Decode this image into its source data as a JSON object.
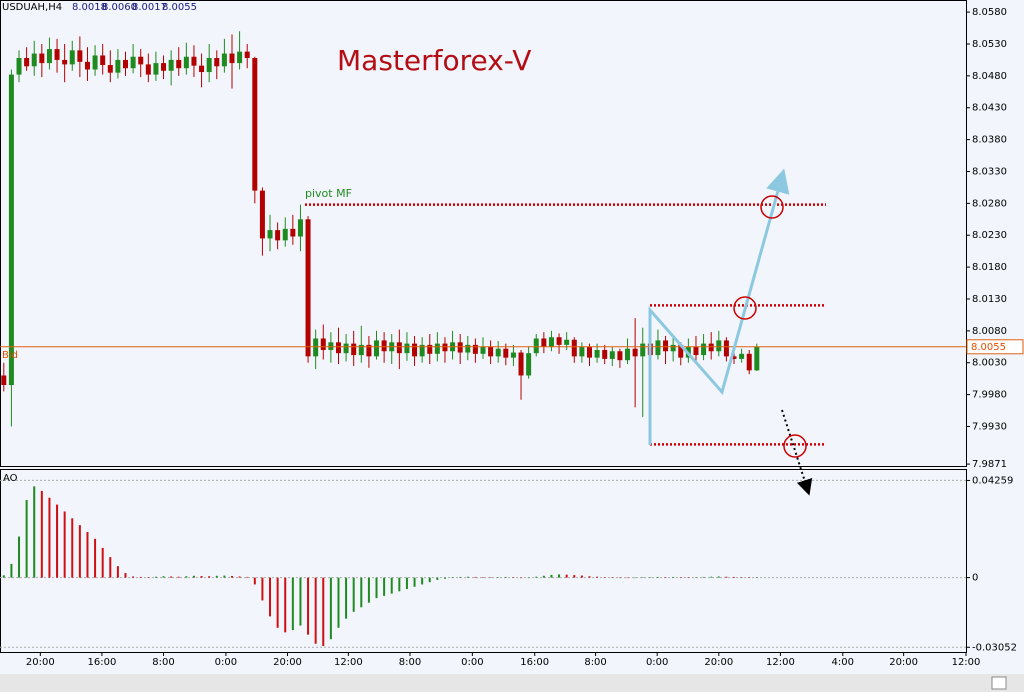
{
  "chart_data": [
    {
      "type": "candlestick",
      "title": "USDUAH,H4",
      "ohlc_header": [
        {
          "value": 8.0018,
          "label": "8.0018"
        },
        {
          "value": 8.006,
          "label": "8.0060"
        },
        {
          "value": 8.0017,
          "label": "8.0017"
        },
        {
          "value": 8.0055,
          "label": "8.0055"
        }
      ],
      "annotation": "Masterforex-V",
      "pivot_label": "pivot MF",
      "bid_label": "Bid",
      "bid_price": 8.0055,
      "levels": [
        8.0278,
        8.012,
        7.9902
      ],
      "up_color": "#1f8a1f",
      "down_color": "#b30000",
      "open": [
        8.001,
        7.9995,
        8.0482,
        8.0508,
        8.0495,
        8.0515,
        8.05,
        8.0522,
        8.0505,
        8.0498,
        8.052,
        8.0502,
        8.049,
        8.0512,
        8.0497,
        8.0485,
        8.0505,
        8.0492,
        8.051,
        8.0498,
        8.0482,
        8.05,
        8.0488,
        8.0505,
        8.0492,
        8.051,
        8.0496,
        8.0486,
        8.0508,
        8.0495,
        8.0515,
        8.05,
        8.0518,
        8.0508,
        8.03,
        8.0225,
        8.0238,
        8.0222,
        8.024,
        8.0228,
        8.0255,
        8.004,
        8.0068,
        8.005,
        8.0062,
        8.0045,
        8.006,
        8.0042,
        8.0058,
        8.004,
        8.0065,
        8.0048,
        8.0062,
        8.0045,
        8.006,
        8.004,
        8.0058,
        8.0044,
        8.006,
        8.0048,
        8.0062,
        8.0046,
        8.0058,
        8.0044,
        8.0055,
        8.004,
        8.0052,
        8.0038,
        8.0046,
        8.001,
        8.0045,
        8.0068,
        8.0055,
        8.007,
        8.0058,
        8.0066,
        8.004,
        8.0055,
        8.0038,
        8.005,
        8.0036,
        8.0048,
        8.0034,
        8.0052,
        8.004,
        8.006,
        8.0042,
        8.0065,
        8.0048,
        8.0058,
        8.0038,
        8.0055,
        8.0042,
        8.006,
        8.0048,
        8.0065,
        8.004,
        8.0036,
        8.0044,
        8.0018
      ],
      "high": [
        8.003,
        8.049,
        8.052,
        8.0525,
        8.0535,
        8.053,
        8.054,
        8.0538,
        8.053,
        8.0535,
        8.0542,
        8.0525,
        8.0528,
        8.053,
        8.052,
        8.0522,
        8.0518,
        8.053,
        8.0522,
        8.0515,
        8.0518,
        8.0512,
        8.052,
        8.0525,
        8.0532,
        8.0528,
        8.0515,
        8.053,
        8.052,
        8.0538,
        8.0545,
        8.055,
        8.053,
        8.051,
        8.0305,
        8.0262,
        8.025,
        8.0258,
        8.0262,
        8.0278,
        8.026,
        8.0082,
        8.009,
        8.0078,
        8.0085,
        8.0075,
        8.008,
        8.0088,
        8.0072,
        8.008,
        8.0078,
        8.0075,
        8.0082,
        8.0078,
        8.0072,
        8.007,
        8.0075,
        8.0078,
        8.007,
        8.008,
        8.0075,
        8.0072,
        8.0068,
        8.007,
        8.0065,
        8.0064,
        8.006,
        8.0058,
        8.005,
        8.0055,
        8.0075,
        8.0078,
        8.008,
        8.0076,
        8.0078,
        8.007,
        8.0062,
        8.006,
        8.006,
        8.0058,
        8.0055,
        8.0052,
        8.0068,
        8.01,
        8.0085,
        8.0078,
        8.0082,
        8.0072,
        8.007,
        8.0062,
        8.0068,
        8.0072,
        8.0075,
        8.0078,
        8.008,
        8.007,
        8.005,
        8.0052,
        8.005,
        8.006
      ],
      "low": [
        7.9985,
        7.993,
        8.047,
        8.0488,
        8.048,
        8.0478,
        8.049,
        8.0485,
        8.047,
        8.0488,
        8.0478,
        8.0472,
        8.048,
        8.0482,
        8.047,
        8.0476,
        8.048,
        8.0484,
        8.0478,
        8.047,
        8.0472,
        8.0475,
        8.0465,
        8.048,
        8.0482,
        8.0478,
        8.0462,
        8.047,
        8.0475,
        8.0485,
        8.046,
        8.049,
        8.0492,
        8.028,
        8.0198,
        8.0205,
        8.0208,
        8.0212,
        8.0215,
        8.0205,
        8.003,
        8.002,
        8.0035,
        8.003,
        8.0028,
        8.0032,
        8.0025,
        8.003,
        8.0022,
        8.0035,
        8.003,
        8.0028,
        8.002,
        8.0033,
        8.0025,
        8.003,
        8.0028,
        8.0032,
        8.003,
        8.0035,
        8.0028,
        8.0034,
        8.003,
        8.0036,
        8.0028,
        8.003,
        8.0026,
        8.0025,
        7.9972,
        8.0005,
        8.004,
        8.0045,
        8.0048,
        8.0044,
        8.005,
        8.003,
        8.003,
        8.0025,
        8.003,
        8.0028,
        8.0025,
        8.0022,
        8.0028,
        7.996,
        7.9945,
        8.003,
        8.0035,
        8.0028,
        8.0032,
        8.0026,
        8.003,
        8.003,
        8.0034,
        8.0035,
        8.004,
        8.0032,
        8.0028,
        8.003,
        8.0012,
        8.0017
      ],
      "close": [
        7.9995,
        8.0482,
        8.0508,
        8.0495,
        8.0515,
        8.05,
        8.0522,
        8.0505,
        8.0498,
        8.052,
        8.0502,
        8.049,
        8.0512,
        8.0497,
        8.0485,
        8.0505,
        8.0492,
        8.051,
        8.0498,
        8.0482,
        8.05,
        8.0488,
        8.0505,
        8.0492,
        8.051,
        8.0496,
        8.0486,
        8.0508,
        8.0495,
        8.0515,
        8.05,
        8.0518,
        8.0508,
        8.03,
        8.0225,
        8.0238,
        8.0222,
        8.024,
        8.0228,
        8.0255,
        8.004,
        8.0068,
        8.005,
        8.0062,
        8.0045,
        8.006,
        8.0042,
        8.0058,
        8.004,
        8.0065,
        8.0048,
        8.0062,
        8.0045,
        8.006,
        8.004,
        8.0058,
        8.0044,
        8.006,
        8.0048,
        8.0062,
        8.0046,
        8.0058,
        8.0044,
        8.0055,
        8.004,
        8.0052,
        8.0038,
        8.0046,
        8.001,
        8.0045,
        8.0068,
        8.0055,
        8.007,
        8.0058,
        8.0066,
        8.004,
        8.0055,
        8.0038,
        8.005,
        8.0036,
        8.0048,
        8.0034,
        8.0052,
        8.004,
        8.006,
        8.0042,
        8.0065,
        8.0048,
        8.0058,
        8.0038,
        8.0055,
        8.0042,
        8.006,
        8.0048,
        8.0065,
        8.004,
        8.0036,
        8.0044,
        8.0018,
        8.0055
      ],
      "xlim": [
        -0.5,
        126.5
      ],
      "xticks": [
        {
          "value": 4.8,
          "label": "20:00"
        },
        {
          "value": 12.9,
          "label": "16:00"
        },
        {
          "value": 21.0,
          "label": "8:00"
        },
        {
          "value": 29.2,
          "label": "0:00"
        },
        {
          "value": 37.3,
          "label": "20:00"
        },
        {
          "value": 45.3,
          "label": "12:00"
        },
        {
          "value": 53.4,
          "label": "8:00"
        },
        {
          "value": 61.6,
          "label": "0:00"
        },
        {
          "value": 69.8,
          "label": "16:00"
        },
        {
          "value": 77.8,
          "label": "8:00"
        },
        {
          "value": 85.9,
          "label": "0:00"
        },
        {
          "value": 94.0,
          "label": "20:00"
        },
        {
          "value": 102.1,
          "label": "12:00"
        },
        {
          "value": 110.3,
          "label": "4:00"
        },
        {
          "value": 118.3,
          "label": "20:00"
        },
        {
          "value": 126.5,
          "label": "12:00"
        }
      ],
      "ylim": [
        7.9868,
        8.0599
      ],
      "yticks": [
        {
          "value": 8.058,
          "label": "8.0580"
        },
        {
          "value": 8.053,
          "label": "8.0530"
        },
        {
          "value": 8.048,
          "label": "8.0480"
        },
        {
          "value": 8.043,
          "label": "8.0430"
        },
        {
          "value": 8.038,
          "label": "8.0380"
        },
        {
          "value": 8.033,
          "label": "8.0330"
        },
        {
          "value": 8.028,
          "label": "8.0280"
        },
        {
          "value": 8.023,
          "label": "8.0230"
        },
        {
          "value": 8.018,
          "label": "8.0180"
        },
        {
          "value": 8.013,
          "label": "8.0130"
        },
        {
          "value": 8.008,
          "label": "8.0080"
        },
        {
          "value": 8.003,
          "label": "8.0030"
        },
        {
          "value": 7.998,
          "label": "7.9980"
        },
        {
          "value": 7.993,
          "label": "7.9930"
        },
        7.9871
      ]
    },
    {
      "type": "bar",
      "title": "AO",
      "up_color": "#1f8a1f",
      "down_color": "#d01010",
      "values": [
        0.001,
        0.006,
        0.018,
        0.034,
        0.04,
        0.038,
        0.035,
        0.032,
        0.029,
        0.026,
        0.023,
        0.02,
        0.017,
        0.013,
        0.009,
        0.005,
        0.002,
        0.0005,
        0.0003,
        0.0002,
        0.0004,
        0.0006,
        0.0005,
        0.0004,
        0.0006,
        0.0008,
        0.0007,
        0.0006,
        0.0008,
        0.0009,
        0.0007,
        0.0005,
        0.0003,
        -0.003,
        -0.01,
        -0.017,
        -0.022,
        -0.024,
        -0.023,
        -0.021,
        -0.025,
        -0.029,
        -0.03,
        -0.027,
        -0.022,
        -0.018,
        -0.015,
        -0.013,
        -0.011,
        -0.009,
        -0.008,
        -0.007,
        -0.006,
        -0.005,
        -0.004,
        -0.003,
        -0.002,
        -0.001,
        -0.0005,
        0.0002,
        0.0003,
        0.0004,
        0.0003,
        0.0002,
        0.0001,
        0.0002,
        0.0003,
        0.0002,
        -0.0002,
        -0.0001,
        0.0004,
        0.0008,
        0.0012,
        0.0014,
        0.0013,
        0.0011,
        0.0009,
        0.0006,
        0.0004,
        0.0002,
        0.0001,
        -0.0001,
        -0.0002,
        -0.0001,
        0.0001,
        0.0002,
        0.0003,
        0.0002,
        0.0003,
        0.0002,
        0.0001,
        0.0002,
        0.0003,
        0.0004,
        0.0005,
        0.0004,
        0.0003,
        0.0002,
        0.0001,
        0.0002
      ],
      "ylim": [
        -0.0326,
        0.0476
      ],
      "yticks": [
        0.04259,
        0,
        -0.03052
      ],
      "grid": true
    }
  ]
}
